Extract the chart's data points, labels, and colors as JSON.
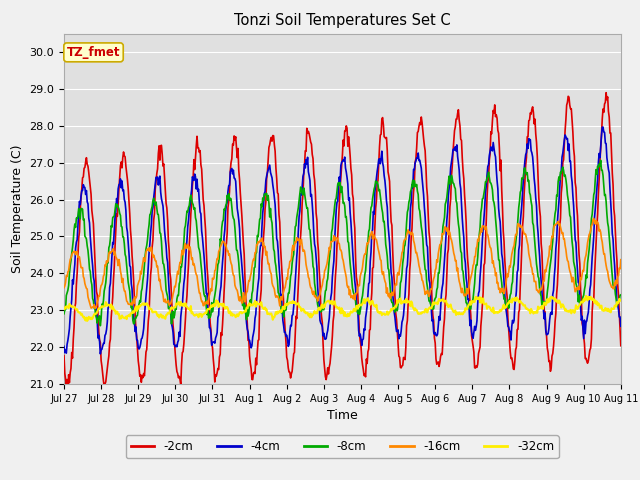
{
  "title": "Tonzi Soil Temperatures Set C",
  "xlabel": "Time",
  "ylabel": "Soil Temperature (C)",
  "ylim": [
    21.0,
    30.5
  ],
  "yticks": [
    21.0,
    22.0,
    23.0,
    24.0,
    25.0,
    26.0,
    27.0,
    28.0,
    29.0,
    30.0
  ],
  "fig_bg": "#f0f0f0",
  "plot_bg": "#e0e0e0",
  "grid_color": "#ffffff",
  "annotation_text": "TZ_fmet",
  "annotation_color": "#cc0000",
  "annotation_bg": "#ffffcc",
  "annotation_border": "#ccaa00",
  "series": [
    {
      "label": "-2cm",
      "color": "#dd0000",
      "lw": 1.2
    },
    {
      "label": "-4cm",
      "color": "#0000cc",
      "lw": 1.2
    },
    {
      "label": "-8cm",
      "color": "#00aa00",
      "lw": 1.2
    },
    {
      "label": "-16cm",
      "color": "#ff8800",
      "lw": 1.2
    },
    {
      "label": "-32cm",
      "color": "#ffee00",
      "lw": 1.5
    }
  ],
  "x_tick_labels": [
    "Jul 27",
    "Jul 28",
    "Jul 29",
    "Jul 30",
    "Jul 31",
    "Aug 1",
    "Aug 2",
    "Aug 3",
    "Aug 4",
    "Aug 5",
    "Aug 6",
    "Aug 7",
    "Aug 8",
    "Aug 9",
    "Aug 10",
    "Aug 11"
  ],
  "n_days": 15,
  "points_per_day": 48
}
